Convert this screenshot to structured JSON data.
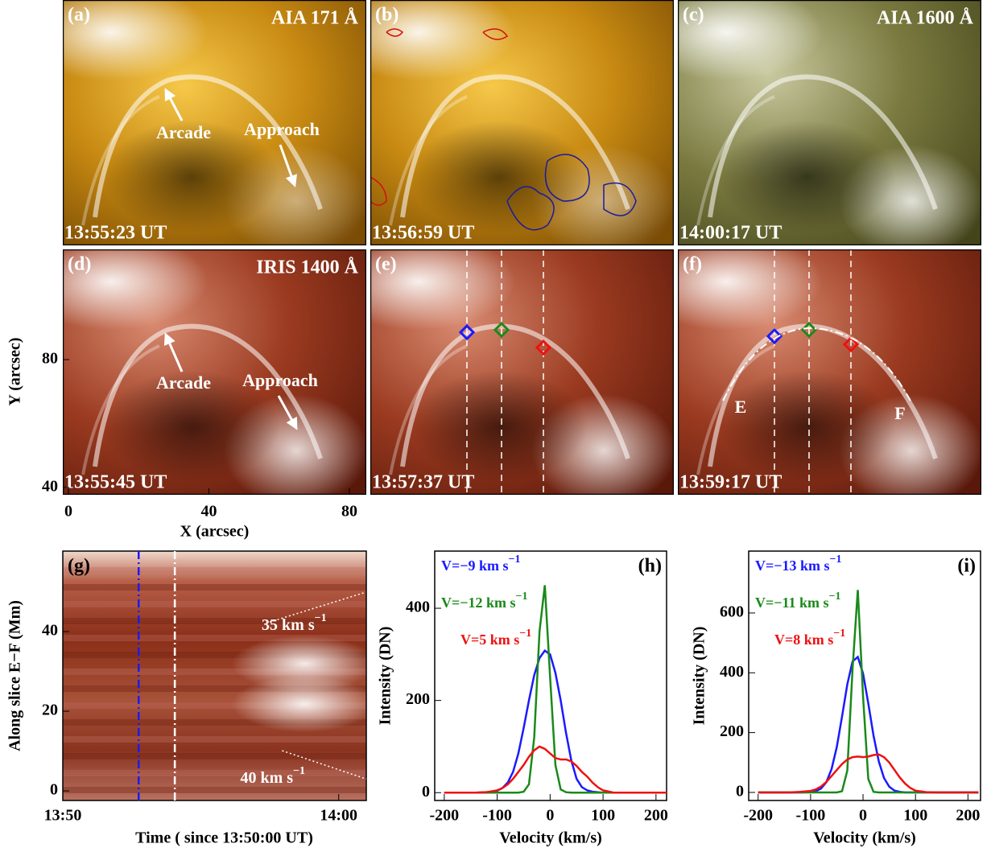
{
  "chart_data": [
    {
      "type": "image",
      "xlabel": "X (arcsec)",
      "ylabel": "Y (arcsec)",
      "xlim": [
        -1.6,
        84.8
      ],
      "xticks": [
        0,
        40,
        80
      ],
      "ylim": [
        37.7,
        114.5
      ],
      "yticks": [
        40,
        80
      ],
      "panels": [
        {
          "label": "(a)",
          "title": "AIA 171 Å",
          "time": "13:55:23 UT",
          "annotations": [
            "Arcade",
            "Approach"
          ]
        },
        {
          "label": "(b)",
          "time": "13:56:59 UT"
        },
        {
          "label": "(c)",
          "title": "AIA 1600 Å",
          "time": "14:00:17 UT"
        },
        {
          "label": "(d)",
          "title": "IRIS 1400 Å",
          "time": "13:55:45 UT",
          "annotations": [
            "Arcade",
            "Approach"
          ]
        },
        {
          "label": "(e)",
          "time": "13:57:37 UT"
        },
        {
          "label": "(f)",
          "time": "13:59:17 UT",
          "annotations": [
            "E",
            "F"
          ]
        }
      ]
    },
    {
      "type": "image",
      "title": "(g)",
      "xlabel": "Time ( since 13:50:00 UT)",
      "ylabel": "Along slice E−F (Mm)",
      "xlim": [
        0,
        11
      ],
      "xticks": [
        {
          "value": 0,
          "label": "13:50"
        },
        {
          "value": 10,
          "label": "14:00"
        }
      ],
      "ylim": [
        -2.4,
        60.2
      ],
      "yticks": [
        0,
        20,
        40
      ],
      "markers": [
        {
          "x": 2.75,
          "color": "#1a1aff"
        },
        {
          "x": 4.06,
          "color": "#ffffff"
        }
      ],
      "fits": [
        {
          "label": "35 km s",
          "label_sup": "−1",
          "x": [
            7.5,
            10.9
          ],
          "y": [
            42.4,
            49.7
          ]
        },
        {
          "label": "40 km s",
          "label_sup": "−1",
          "x": [
            7.95,
            11
          ],
          "y": [
            10.1,
            3
          ]
        }
      ]
    },
    {
      "type": "line",
      "title": "(h)",
      "xlabel": "Velocity (km/s)",
      "ylabel": "Intensity (DN)",
      "xlim": [
        -218,
        220
      ],
      "xticks": [
        -200,
        -100,
        0,
        100,
        200
      ],
      "ylim": [
        -17,
        524
      ],
      "yticks": [
        0,
        200,
        400
      ],
      "x": [
        -200,
        -180,
        -160,
        -140,
        -120,
        -100,
        -90,
        -80,
        -70,
        -60,
        -50,
        -40,
        -30,
        -20,
        -10,
        0,
        10,
        20,
        30,
        40,
        50,
        60,
        70,
        80,
        90,
        100,
        120,
        140,
        160,
        180,
        200,
        220
      ],
      "series": [
        {
          "name": "V=−9 km s",
          "name_sup": "−1",
          "color": "#1a1aff",
          "values": [
            0,
            0,
            0,
            0,
            1,
            4,
            10,
            22,
            45,
            85,
            140,
            200,
            255,
            292,
            308,
            300,
            260,
            200,
            130,
            70,
            30,
            12,
            5,
            2,
            1,
            0,
            0,
            0,
            0,
            0,
            0,
            0
          ]
        },
        {
          "name": "V=−12 km s",
          "name_sup": "−1",
          "color": "#1a8a1a",
          "values": [
            0,
            0,
            0,
            0,
            0,
            0,
            0,
            0,
            0,
            0,
            2,
            18,
            120,
            350,
            450,
            250,
            60,
            7,
            1,
            0,
            0,
            0,
            0,
            0,
            0,
            0,
            0,
            0,
            0,
            0,
            0,
            0
          ]
        },
        {
          "name": "V=5 km s",
          "name_sup": "−1",
          "color": "#ee1111",
          "values": [
            0,
            0,
            0,
            0,
            1,
            5,
            10,
            18,
            30,
            45,
            60,
            78,
            92,
            100,
            95,
            85,
            75,
            72,
            72,
            68,
            58,
            45,
            35,
            22,
            12,
            5,
            0,
            0,
            0,
            0,
            0,
            0
          ]
        }
      ]
    },
    {
      "type": "line",
      "title": "(i)",
      "xlabel": "Velocity (km/s)",
      "ylabel": "Intensity (DN)",
      "xlim": [
        -218,
        224
      ],
      "xticks": [
        -200,
        -100,
        0,
        100,
        200
      ],
      "ylim": [
        -27,
        807
      ],
      "yticks": [
        0,
        200,
        400,
        600
      ],
      "x": [
        -200,
        -180,
        -160,
        -140,
        -120,
        -100,
        -90,
        -80,
        -70,
        -60,
        -50,
        -40,
        -30,
        -20,
        -10,
        0,
        10,
        20,
        30,
        40,
        50,
        60,
        70,
        80,
        90,
        100,
        120,
        140,
        160,
        180,
        200,
        220
      ],
      "series": [
        {
          "name": "V=−13 km s",
          "name_sup": "−1",
          "color": "#1a1aff",
          "values": [
            0,
            0,
            0,
            0,
            0,
            1,
            4,
            13,
            34,
            78,
            152,
            254,
            361,
            438,
            453,
            398,
            298,
            190,
            104,
            48,
            19,
            6,
            2,
            0,
            0,
            0,
            0,
            0,
            0,
            0,
            0,
            0
          ]
        },
        {
          "name": "V=−11 km s",
          "name_sup": "−1",
          "color": "#1a8a1a",
          "values": [
            0,
            0,
            0,
            0,
            0,
            0,
            0,
            0,
            0,
            0,
            0,
            4,
            73,
            412,
            677,
            322,
            45,
            2,
            0,
            0,
            0,
            0,
            0,
            0,
            0,
            0,
            0,
            0,
            0,
            0,
            0,
            0
          ]
        },
        {
          "name": "V=8 km s",
          "name_sup": "−1",
          "color": "#ee1111",
          "values": [
            0,
            0,
            0,
            0,
            2,
            5,
            10,
            20,
            35,
            55,
            75,
            95,
            110,
            118,
            120,
            118,
            120,
            125,
            127,
            118,
            100,
            75,
            50,
            30,
            15,
            6,
            1,
            0,
            0,
            0,
            0,
            0
          ]
        }
      ]
    }
  ]
}
